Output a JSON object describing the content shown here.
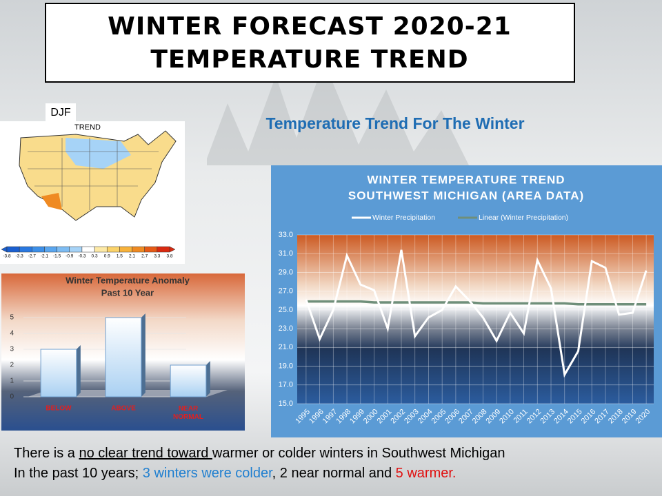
{
  "slide": {
    "title_line1": "WINTER FORECAST 2020-21",
    "title_line2": "TEMPERATURE TREND",
    "subtitle": "Temperature  Trend For The Winter",
    "footer": {
      "line1": [
        "There is a ",
        "no clear trend toward ",
        "warmer or colder winters in Southwest Michigan"
      ],
      "line2": [
        "In the past 10 years; ",
        "3 winters were colder",
        ", 2 near normal and ",
        "5 warmer."
      ]
    }
  },
  "map": {
    "label": "DJF",
    "legend_title": "TREND",
    "colorbar": {
      "ticks": [
        -3.8,
        -3.3,
        -2.7,
        -2.1,
        -1.5,
        -0.9,
        -0.3,
        0.3,
        0.9,
        1.5,
        2.1,
        2.7,
        3.3,
        3.8
      ],
      "colors": [
        "#1a5fd0",
        "#2a78e0",
        "#3d8fe8",
        "#5aa6ef",
        "#7dbcf3",
        "#a6d3f7",
        "#ffffff",
        "#fde9a6",
        "#fbd36a",
        "#f7b23b",
        "#ef8a22",
        "#e65a16",
        "#d92a10"
      ]
    }
  },
  "chart_data": [
    {
      "type": "bar",
      "title": "Winter Temperature Anomaly",
      "subtitle": "Past 10 Year",
      "categories": [
        "BELOW",
        "ABOVE",
        "NEAR NORMAL"
      ],
      "values": [
        3,
        5,
        2
      ],
      "color": "#cfe6f8",
      "ylim": [
        0,
        5
      ],
      "yticks": [
        0,
        1,
        2,
        3,
        4,
        5
      ],
      "grid": true
    },
    {
      "type": "line",
      "title": "WINTER TEMPERATURE  TREND",
      "subtitle": "SOUTHWEST MICHIGAN  (AREA DATA)",
      "categories": [
        "1995",
        "1996",
        "1997",
        "1998",
        "1999",
        "2000",
        "2001",
        "2002",
        "2003",
        "2004",
        "2005",
        "2006",
        "2007",
        "2008",
        "2009",
        "2010",
        "2011",
        "2012",
        "2013",
        "2014",
        "2015",
        "2016",
        "2017",
        "2018",
        "2019",
        "2020"
      ],
      "series": [
        {
          "name": "Winter Precipitation",
          "color": "#ffffff",
          "values": [
            26.1,
            21.9,
            25.0,
            30.8,
            27.7,
            27.1,
            23.0,
            31.4,
            22.2,
            24.2,
            25.0,
            27.5,
            26.0,
            24.2,
            21.7,
            24.7,
            22.5,
            30.3,
            27.3,
            18.1,
            20.6,
            30.2,
            29.5,
            24.5,
            24.7,
            29.2
          ]
        },
        {
          "name": "Linear (Winter Precipitation)",
          "color": "#6f8f7a",
          "values": [
            25.9,
            25.9,
            25.9,
            25.9,
            25.9,
            25.8,
            25.8,
            25.8,
            25.8,
            25.8,
            25.8,
            25.8,
            25.8,
            25.7,
            25.7,
            25.7,
            25.7,
            25.7,
            25.7,
            25.7,
            25.6,
            25.6,
            25.6,
            25.6,
            25.6,
            25.6
          ]
        }
      ],
      "ylim": [
        15,
        33
      ],
      "yticks": [
        {
          "value": 15,
          "label": "15.0"
        },
        {
          "value": 17,
          "label": "17.0"
        },
        {
          "value": 19,
          "label": "19.0"
        },
        {
          "value": 21,
          "label": "21.0"
        },
        {
          "value": 23,
          "label": "23.0"
        },
        {
          "value": 25,
          "label": "25.0"
        },
        {
          "value": 27,
          "label": "27.0"
        },
        {
          "value": 29,
          "label": "29.0"
        },
        {
          "value": 31,
          "label": "31.0"
        },
        {
          "value": 33,
          "label": "33.0"
        }
      ],
      "grid": true,
      "legend": "top"
    }
  ]
}
